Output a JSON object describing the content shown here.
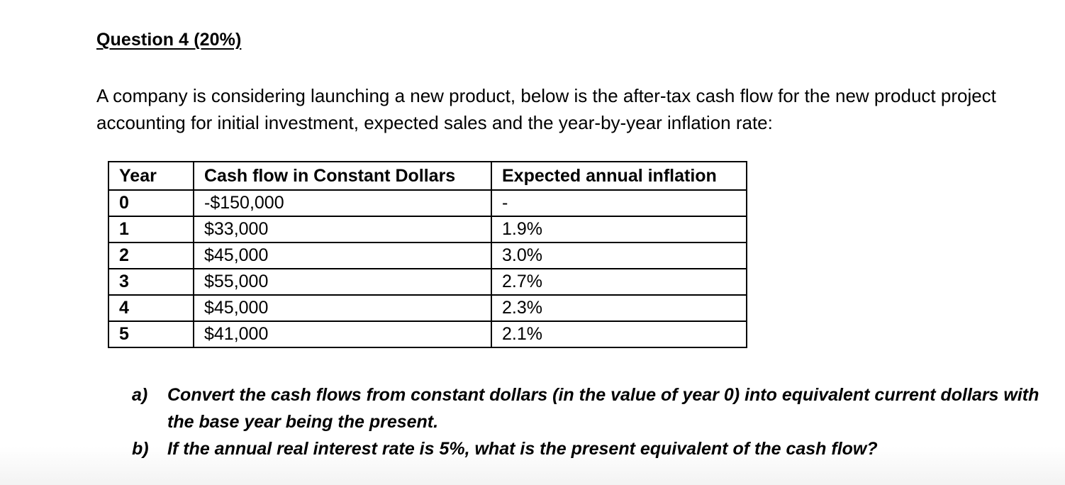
{
  "heading": "Question 4 (20%)",
  "intro": "A company is considering launching a new product, below is the after-tax cash flow for the new product project accounting for initial investment, expected sales and the year-by-year inflation rate:",
  "table": {
    "headers": [
      "Year",
      "Cash flow in Constant Dollars",
      "Expected annual inflation"
    ],
    "rows": [
      {
        "year": "0",
        "cash": "-$150,000",
        "inflation": "-"
      },
      {
        "year": "1",
        "cash": "$33,000",
        "inflation": "1.9%"
      },
      {
        "year": "2",
        "cash": "$45,000",
        "inflation": "3.0%"
      },
      {
        "year": "3",
        "cash": "$55,000",
        "inflation": "2.7%"
      },
      {
        "year": "4",
        "cash": "$45,000",
        "inflation": "2.3%"
      },
      {
        "year": "5",
        "cash": "$41,000",
        "inflation": "2.1%"
      }
    ]
  },
  "questions": [
    {
      "letter": "a)",
      "text": "Convert the cash flows from constant dollars (in the value of year 0) into equivalent current dollars with the base year being the present."
    },
    {
      "letter": "b)",
      "text": "If the annual real interest rate is 5%, what is the present equivalent of the cash flow?"
    }
  ]
}
